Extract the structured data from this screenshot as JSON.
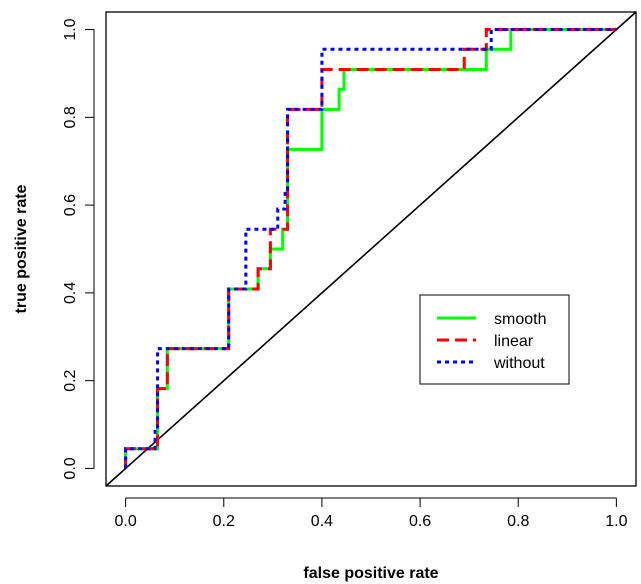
{
  "chart_data": {
    "type": "line",
    "title": "",
    "xlabel": "false positive rate",
    "ylabel": "true positive rate",
    "xlim": [
      -0.04,
      1.04
    ],
    "ylim": [
      -0.04,
      1.04
    ],
    "x_ticks": [
      "0.0",
      "0.2",
      "0.4",
      "0.6",
      "0.8",
      "1.0"
    ],
    "y_ticks": [
      "0.0",
      "0.2",
      "0.4",
      "0.6",
      "0.8",
      "1.0"
    ],
    "grid": false,
    "legend_position": "right-middle",
    "diagonal_reference": true,
    "series": [
      {
        "name": "smooth",
        "color": "#00ff00",
        "dash": "solid",
        "points": [
          [
            0.0,
            0.0
          ],
          [
            0.0,
            0.045
          ],
          [
            0.065,
            0.045
          ],
          [
            0.065,
            0.182
          ],
          [
            0.085,
            0.182
          ],
          [
            0.085,
            0.273
          ],
          [
            0.21,
            0.273
          ],
          [
            0.21,
            0.409
          ],
          [
            0.27,
            0.409
          ],
          [
            0.27,
            0.455
          ],
          [
            0.295,
            0.455
          ],
          [
            0.295,
            0.5
          ],
          [
            0.32,
            0.5
          ],
          [
            0.32,
            0.545
          ],
          [
            0.33,
            0.545
          ],
          [
            0.33,
            0.727
          ],
          [
            0.4,
            0.727
          ],
          [
            0.4,
            0.818
          ],
          [
            0.435,
            0.818
          ],
          [
            0.435,
            0.864
          ],
          [
            0.445,
            0.864
          ],
          [
            0.445,
            0.909
          ],
          [
            0.735,
            0.909
          ],
          [
            0.735,
            0.955
          ],
          [
            0.785,
            0.955
          ],
          [
            0.785,
            1.0
          ],
          [
            1.0,
            1.0
          ]
        ]
      },
      {
        "name": "linear",
        "color": "#ff0000",
        "dash": "dashed",
        "points": [
          [
            0.0,
            0.0
          ],
          [
            0.0,
            0.045
          ],
          [
            0.065,
            0.045
          ],
          [
            0.065,
            0.182
          ],
          [
            0.085,
            0.182
          ],
          [
            0.085,
            0.273
          ],
          [
            0.21,
            0.273
          ],
          [
            0.21,
            0.409
          ],
          [
            0.27,
            0.409
          ],
          [
            0.27,
            0.455
          ],
          [
            0.295,
            0.455
          ],
          [
            0.295,
            0.545
          ],
          [
            0.33,
            0.545
          ],
          [
            0.33,
            0.818
          ],
          [
            0.4,
            0.818
          ],
          [
            0.4,
            0.909
          ],
          [
            0.69,
            0.909
          ],
          [
            0.69,
            0.955
          ],
          [
            0.735,
            0.955
          ],
          [
            0.735,
            1.0
          ],
          [
            1.0,
            1.0
          ]
        ]
      },
      {
        "name": "without",
        "color": "#0000ff",
        "dash": "dotted",
        "points": [
          [
            0.0,
            0.0
          ],
          [
            0.0,
            0.045
          ],
          [
            0.06,
            0.045
          ],
          [
            0.06,
            0.091
          ],
          [
            0.065,
            0.091
          ],
          [
            0.065,
            0.273
          ],
          [
            0.21,
            0.273
          ],
          [
            0.21,
            0.409
          ],
          [
            0.245,
            0.409
          ],
          [
            0.245,
            0.545
          ],
          [
            0.31,
            0.545
          ],
          [
            0.31,
            0.591
          ],
          [
            0.325,
            0.591
          ],
          [
            0.325,
            0.636
          ],
          [
            0.33,
            0.636
          ],
          [
            0.33,
            0.818
          ],
          [
            0.4,
            0.818
          ],
          [
            0.4,
            0.955
          ],
          [
            0.745,
            0.955
          ],
          [
            0.745,
            1.0
          ],
          [
            1.0,
            1.0
          ]
        ]
      }
    ]
  }
}
